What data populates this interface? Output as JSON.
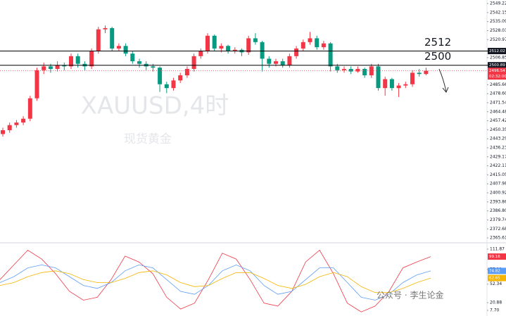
{
  "symbol_watermark": "XAUUSD,4时",
  "name_watermark": "现货黄金",
  "source_watermark": "公众号 · 李生论金",
  "chart_data": [
    {
      "type": "candlestick",
      "up_color": "#f23645",
      "down_color": "#089981",
      "candles": [
        [
          2447,
          2452,
          2445,
          2450
        ],
        [
          2450,
          2456,
          2448,
          2454
        ],
        [
          2454,
          2458,
          2452,
          2456
        ],
        [
          2456,
          2461,
          2454,
          2459
        ],
        [
          2459,
          2477,
          2457,
          2475
        ],
        [
          2475,
          2499,
          2473,
          2497
        ],
        [
          2497,
          2503,
          2494,
          2500
        ],
        [
          2500,
          2502,
          2495,
          2498
        ],
        [
          2498,
          2504,
          2496,
          2501
        ],
        [
          2501,
          2503,
          2497,
          2500
        ],
        [
          2500,
          2510,
          2498,
          2508
        ],
        [
          2508,
          2510,
          2499,
          2502
        ],
        [
          2502,
          2504,
          2497,
          2500
        ],
        [
          2500,
          2514,
          2498,
          2512
        ],
        [
          2512,
          2531,
          2510,
          2529
        ],
        [
          2529,
          2532,
          2526,
          2530
        ],
        [
          2530,
          2531,
          2512,
          2514
        ],
        [
          2514,
          2518,
          2512,
          2516
        ],
        [
          2516,
          2518,
          2508,
          2510
        ],
        [
          2510,
          2512,
          2502,
          2504
        ],
        [
          2504,
          2506,
          2499,
          2502
        ],
        [
          2502,
          2504,
          2497,
          2500
        ],
        [
          2500,
          2502,
          2496,
          2499
        ],
        [
          2499,
          2500,
          2480,
          2486
        ],
        [
          2486,
          2488,
          2479,
          2483
        ],
        [
          2483,
          2491,
          2481,
          2489
        ],
        [
          2489,
          2495,
          2487,
          2493
        ],
        [
          2493,
          2500,
          2491,
          2498
        ],
        [
          2498,
          2510,
          2496,
          2508
        ],
        [
          2508,
          2514,
          2506,
          2512
        ],
        [
          2512,
          2526,
          2510,
          2524
        ],
        [
          2524,
          2525,
          2512,
          2514
        ],
        [
          2514,
          2518,
          2511,
          2516
        ],
        [
          2516,
          2517,
          2510,
          2512
        ],
        [
          2512,
          2515,
          2510,
          2513
        ],
        [
          2513,
          2514,
          2508,
          2511
        ],
        [
          2511,
          2524,
          2509,
          2522
        ],
        [
          2522,
          2526,
          2517,
          2519
        ],
        [
          2519,
          2520,
          2496,
          2506
        ],
        [
          2506,
          2508,
          2499,
          2502
        ],
        [
          2502,
          2506,
          2500,
          2504
        ],
        [
          2504,
          2506,
          2499,
          2501
        ],
        [
          2501,
          2510,
          2499,
          2508
        ],
        [
          2508,
          2516,
          2506,
          2514
        ],
        [
          2514,
          2521,
          2512,
          2519
        ],
        [
          2519,
          2527,
          2517,
          2522
        ],
        [
          2522,
          2524,
          2513,
          2515
        ],
        [
          2515,
          2520,
          2513,
          2518
        ],
        [
          2518,
          2519,
          2496,
          2500
        ],
        [
          2500,
          2502,
          2495,
          2497
        ],
        [
          2497,
          2500,
          2495,
          2498
        ],
        [
          2498,
          2500,
          2494,
          2496
        ],
        [
          2496,
          2500,
          2495,
          2498
        ],
        [
          2498,
          2499,
          2491,
          2493
        ],
        [
          2493,
          2502,
          2491,
          2500
        ],
        [
          2500,
          2502,
          2481,
          2483
        ],
        [
          2483,
          2492,
          2477,
          2490
        ],
        [
          2490,
          2491,
          2481,
          2483
        ],
        [
          2483,
          2487,
          2476,
          2485
        ],
        [
          2485,
          2488,
          2483,
          2486
        ],
        [
          2486,
          2497,
          2484,
          2495
        ],
        [
          2495,
          2498,
          2492,
          2494
        ],
        [
          2494,
          2499,
          2493,
          2496.54
        ]
      ],
      "ylim": [
        2361.8,
        2552.0
      ],
      "yticks": [
        2549.22,
        2542.15,
        2535.09,
        2528.03,
        2520.97,
        2506.85,
        {
          "value": 2485.66,
          "label": "2485.66"
        },
        {
          "value": 2478.6,
          "label": "2478.60"
        },
        2471.54,
        2464.48,
        2457.42,
        2450.35,
        2443.29,
        2436.23,
        2429.17,
        2422.11,
        2415.05,
        2407.98,
        2400.92,
        2393.86,
        {
          "value": 2386.8,
          "label": "2386.80"
        },
        2379.74,
        2372.68,
        2365.61
      ],
      "levels": [
        {
          "value": 2512.02,
          "annotation": "2512"
        },
        {
          "value": 2500.89,
          "annotation": "2500"
        }
      ],
      "last_price": 2496.54,
      "countdown": "02:32:00"
    },
    {
      "type": "line",
      "ylim": [
        -1.9,
        122.6
      ],
      "yticks": [
        111.87,
        77.11,
        52.34,
        20.88,
        {
          "value": 7.7,
          "label": "7.70"
        }
      ],
      "series": [
        {
          "color": "#f23645",
          "values": [
            60,
            85,
            110,
            95,
            70,
            40,
            25,
            30,
            60,
            100,
            90,
            70,
            30,
            10,
            20,
            60,
            105,
            95,
            60,
            20,
            15,
            40,
            90,
            110,
            70,
            20,
            5,
            15,
            40,
            80,
            90,
            99.16
          ]
        },
        {
          "color": "#5b9cf6",
          "values": [
            55,
            65,
            80,
            85,
            80,
            65,
            50,
            45,
            55,
            75,
            85,
            80,
            60,
            40,
            35,
            50,
            75,
            85,
            75,
            50,
            35,
            40,
            60,
            80,
            80,
            55,
            30,
            25,
            35,
            55,
            68,
            74.82
          ]
        },
        {
          "color": "#f5b400",
          "values": [
            50,
            55,
            65,
            72,
            75,
            70,
            60,
            55,
            55,
            62,
            72,
            75,
            68,
            55,
            48,
            50,
            62,
            72,
            72,
            62,
            50,
            45,
            52,
            65,
            72,
            65,
            48,
            38,
            38,
            45,
            55,
            62.65
          ]
        }
      ]
    }
  ]
}
